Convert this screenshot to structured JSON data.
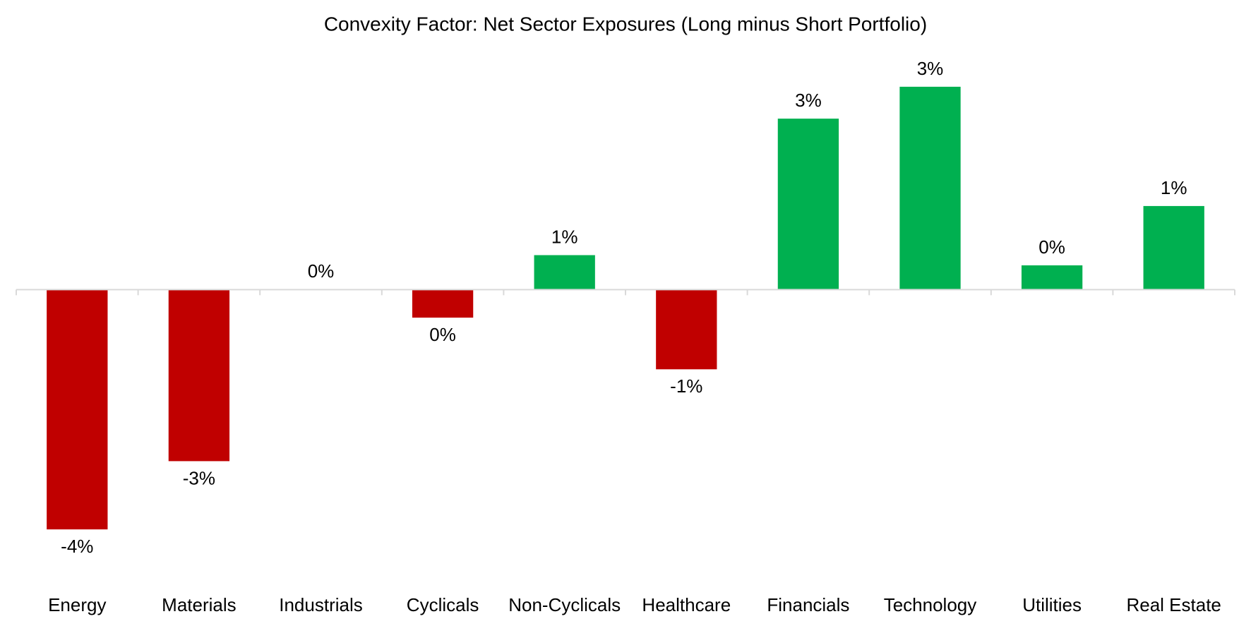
{
  "chart_data": {
    "type": "bar",
    "title": "Convexity Factor: Net Sector Exposures (Long minus Short Portfolio)",
    "categories": [
      "Energy",
      "Materials",
      "Industrials",
      "Cyclicals",
      "Non-Cyclicals",
      "Healthcare",
      "Financials",
      "Technology",
      "Utilities",
      "Real Estate"
    ],
    "values": [
      -3.76,
      -2.69,
      0.0,
      -0.44,
      0.54,
      -1.25,
      2.68,
      3.18,
      0.38,
      1.31
    ],
    "value_labels": [
      "-4%",
      "-3%",
      "0%",
      "0%",
      "1%",
      "-1%",
      "3%",
      "3%",
      "0%",
      "1%"
    ],
    "colors": [
      "#c00000",
      "#c00000",
      "#c00000",
      "#c00000",
      "#00b050",
      "#c00000",
      "#00b050",
      "#00b050",
      "#00b050",
      "#00b050"
    ],
    "ylim": [
      -4.5,
      3.5
    ]
  }
}
